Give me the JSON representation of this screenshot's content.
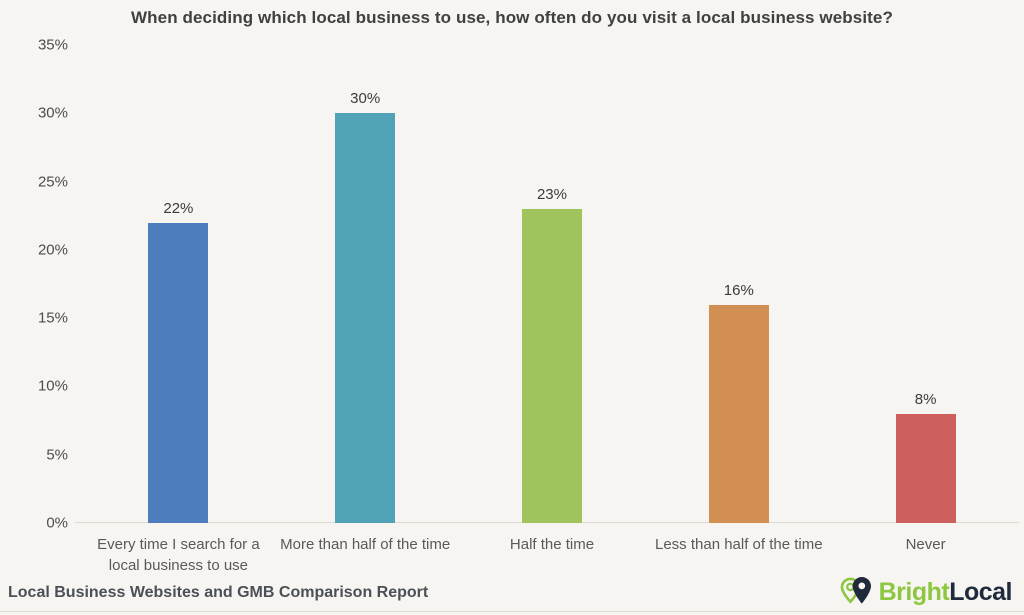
{
  "title": "When deciding which local business to use, how often do you visit a local business website?",
  "footer": {
    "report_label": "Local Business Websites and GMB Comparison Report",
    "brand": {
      "name_part1": "Bright",
      "name_part2": "Local"
    }
  },
  "colors": {
    "background": "#f7f5f2",
    "title_text": "#404040",
    "axis_text": "#4d4d4d",
    "value_label_text": "#3b3b3b",
    "category_text": "#595959",
    "footer_text": "#4b5056",
    "baseline": "#ddd9d3",
    "brand_green": "#8dc63f",
    "brand_navy": "#1f2a3c"
  },
  "chart_data": {
    "type": "bar",
    "title": "When deciding which local business to use, how often do you visit a local business website?",
    "categories": [
      "Every time I search for a local business to use",
      "More than half of the time",
      "Half the time",
      "Less than half of the time",
      "Never"
    ],
    "values": [
      22,
      30,
      23,
      16,
      8
    ],
    "value_labels": [
      "22%",
      "30%",
      "23%",
      "16%",
      "8%"
    ],
    "bar_colors": [
      "#4d7dbd",
      "#52a3b8",
      "#9fc45c",
      "#d18f54",
      "#cd5f5e"
    ],
    "xlabel": "",
    "ylabel": "",
    "ylim": [
      0,
      35
    ],
    "y_tick_values": [
      0,
      5,
      10,
      15,
      20,
      25,
      30,
      35
    ],
    "y_tick_labels": [
      "0%",
      "5%",
      "10%",
      "15%",
      "20%",
      "25%",
      "30%",
      "35%"
    ],
    "grid": false,
    "legend": false
  }
}
